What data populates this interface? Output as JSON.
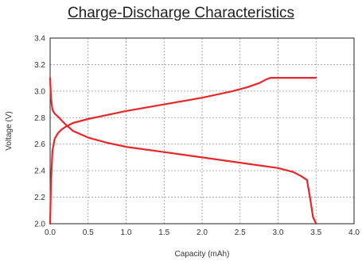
{
  "chart_data": {
    "type": "line",
    "title": "Charge-Discharge Characteristics",
    "xlabel": "Capacity (mAh)",
    "ylabel": "Voltage (V)",
    "xlim": [
      0.0,
      4.0
    ],
    "ylim": [
      2.0,
      3.4
    ],
    "x_ticks": [
      "0.0",
      "0.5",
      "1.0",
      "1.5",
      "2.0",
      "2.5",
      "3.0",
      "3.5",
      "4.0"
    ],
    "y_ticks": [
      "2.0",
      "2.2",
      "2.4",
      "2.6",
      "2.8",
      "3.0",
      "3.2",
      "3.4"
    ],
    "grid": true,
    "line_color": "#e8262a",
    "series": [
      {
        "x": [
          0.0,
          0.01,
          0.03,
          0.06,
          0.1,
          0.15,
          0.2,
          0.3,
          0.5,
          0.75,
          1.0,
          1.5,
          2.0,
          2.4,
          2.6,
          2.75,
          2.85,
          2.9,
          3.0,
          3.5
        ],
        "y": [
          2.0,
          2.3,
          2.55,
          2.64,
          2.68,
          2.71,
          2.73,
          2.76,
          2.79,
          2.82,
          2.85,
          2.9,
          2.95,
          3.0,
          3.03,
          3.06,
          3.09,
          3.1,
          3.1,
          3.1
        ]
      },
      {
        "x": [
          0.0,
          0.01,
          0.03,
          0.06,
          0.1,
          0.2,
          0.3,
          0.5,
          0.75,
          1.0,
          1.5,
          2.0,
          2.5,
          3.0,
          3.2,
          3.3,
          3.38,
          3.42,
          3.46,
          3.5
        ],
        "y": [
          3.1,
          2.95,
          2.86,
          2.83,
          2.81,
          2.75,
          2.7,
          2.65,
          2.61,
          2.58,
          2.54,
          2.5,
          2.46,
          2.42,
          2.39,
          2.36,
          2.33,
          2.2,
          2.05,
          2.0
        ]
      }
    ]
  }
}
